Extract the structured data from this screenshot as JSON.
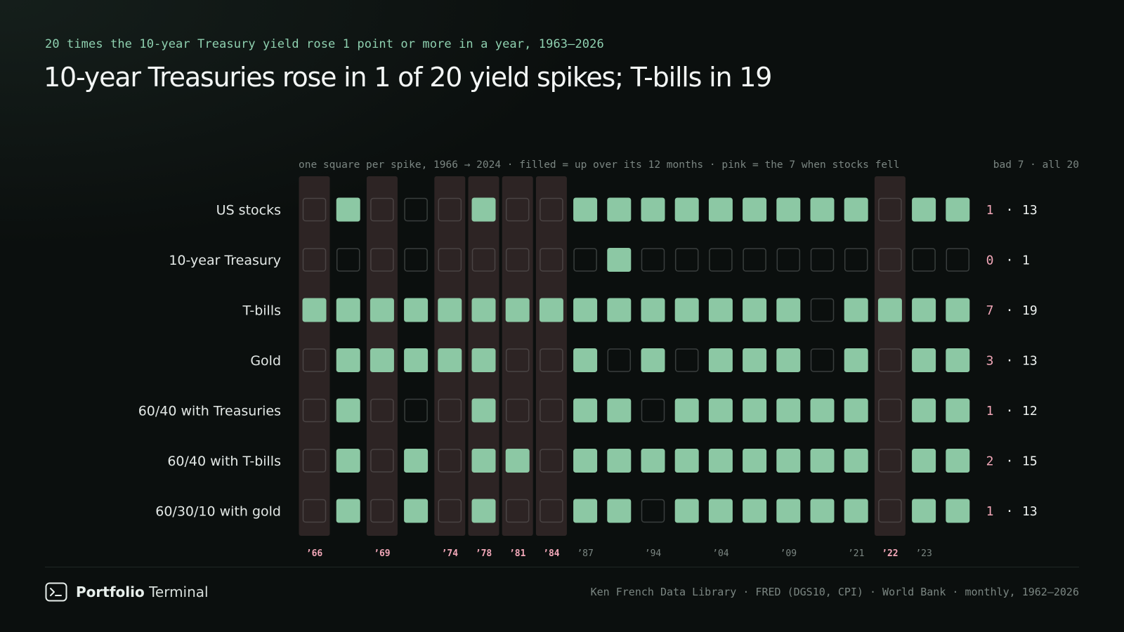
{
  "header": {
    "eyebrow": "20 times the 10-year Treasury yield rose 1 point or more in a year, 1963–2026",
    "title": "10-year Treasuries rose in 1 of 20 yield spikes; T-bills in 19"
  },
  "chart_data": {
    "type": "table",
    "caption": "one square per spike, 1966 → 2024 · filled = up over its 12 months · pink = the 7 when stocks fell",
    "count_header": "bad 7 · all 20",
    "count_separator": "·",
    "spikes": [
      {
        "label": "’66",
        "stocks_fell": true
      },
      {
        "label": "",
        "stocks_fell": false
      },
      {
        "label": "’69",
        "stocks_fell": true
      },
      {
        "label": "",
        "stocks_fell": false
      },
      {
        "label": "’74",
        "stocks_fell": true
      },
      {
        "label": "’78",
        "stocks_fell": true
      },
      {
        "label": "’81",
        "stocks_fell": true
      },
      {
        "label": "’84",
        "stocks_fell": true
      },
      {
        "label": "’87",
        "stocks_fell": false
      },
      {
        "label": "",
        "stocks_fell": false
      },
      {
        "label": "’94",
        "stocks_fell": false
      },
      {
        "label": "",
        "stocks_fell": false
      },
      {
        "label": "’04",
        "stocks_fell": false
      },
      {
        "label": "",
        "stocks_fell": false
      },
      {
        "label": "’09",
        "stocks_fell": false
      },
      {
        "label": "",
        "stocks_fell": false
      },
      {
        "label": "’21",
        "stocks_fell": false
      },
      {
        "label": "’22",
        "stocks_fell": true
      },
      {
        "label": "’23",
        "stocks_fell": false
      },
      {
        "label": "",
        "stocks_fell": false
      }
    ],
    "series": [
      {
        "name": "US stocks",
        "up": [
          0,
          1,
          0,
          0,
          0,
          1,
          0,
          0,
          1,
          1,
          1,
          1,
          1,
          1,
          1,
          1,
          1,
          0,
          1,
          1
        ],
        "bad": 1,
        "all": 13
      },
      {
        "name": "10-year Treasury",
        "up": [
          0,
          0,
          0,
          0,
          0,
          0,
          0,
          0,
          0,
          1,
          0,
          0,
          0,
          0,
          0,
          0,
          0,
          0,
          0,
          0
        ],
        "bad": 0,
        "all": 1
      },
      {
        "name": "T-bills",
        "up": [
          1,
          1,
          1,
          1,
          1,
          1,
          1,
          1,
          1,
          1,
          1,
          1,
          1,
          1,
          1,
          0,
          1,
          1,
          1,
          1
        ],
        "bad": 7,
        "all": 19
      },
      {
        "name": "Gold",
        "up": [
          0,
          1,
          1,
          1,
          1,
          1,
          0,
          0,
          1,
          0,
          1,
          0,
          1,
          1,
          1,
          0,
          1,
          0,
          1,
          1
        ],
        "bad": 3,
        "all": 13
      },
      {
        "name": "60/40 with Treasuries",
        "up": [
          0,
          1,
          0,
          0,
          0,
          1,
          0,
          0,
          1,
          1,
          0,
          1,
          1,
          1,
          1,
          1,
          1,
          0,
          1,
          1
        ],
        "bad": 1,
        "all": 12
      },
      {
        "name": "60/40 with T-bills",
        "up": [
          0,
          1,
          0,
          1,
          0,
          1,
          1,
          0,
          1,
          1,
          1,
          1,
          1,
          1,
          1,
          1,
          1,
          0,
          1,
          1
        ],
        "bad": 2,
        "all": 15
      },
      {
        "name": "60/30/10 with gold",
        "up": [
          0,
          1,
          0,
          1,
          0,
          1,
          0,
          0,
          1,
          1,
          0,
          1,
          1,
          1,
          1,
          1,
          1,
          0,
          1,
          1
        ],
        "bad": 1,
        "all": 13
      }
    ],
    "colors": {
      "filled": "#8cc8a4",
      "empty_stroke": "#3a3f3e",
      "empty_stroke_bad": "#4a4444",
      "bad_column": "#2d2424",
      "bad_count": "#f2a7b8",
      "all_count": "#eef2f0",
      "row_label": "#e3e8e6",
      "year_label": "#7b8682",
      "bad_year_label": "#f2a7b8",
      "caption": "#7b8682"
    }
  },
  "footer": {
    "brand_bold": "Portfolio",
    "brand_light": "Terminal",
    "brand_icon": "terminal-prompt-icon",
    "sources": "Ken French Data Library · FRED (DGS10, CPI) · World Bank · monthly, 1962–2026"
  }
}
